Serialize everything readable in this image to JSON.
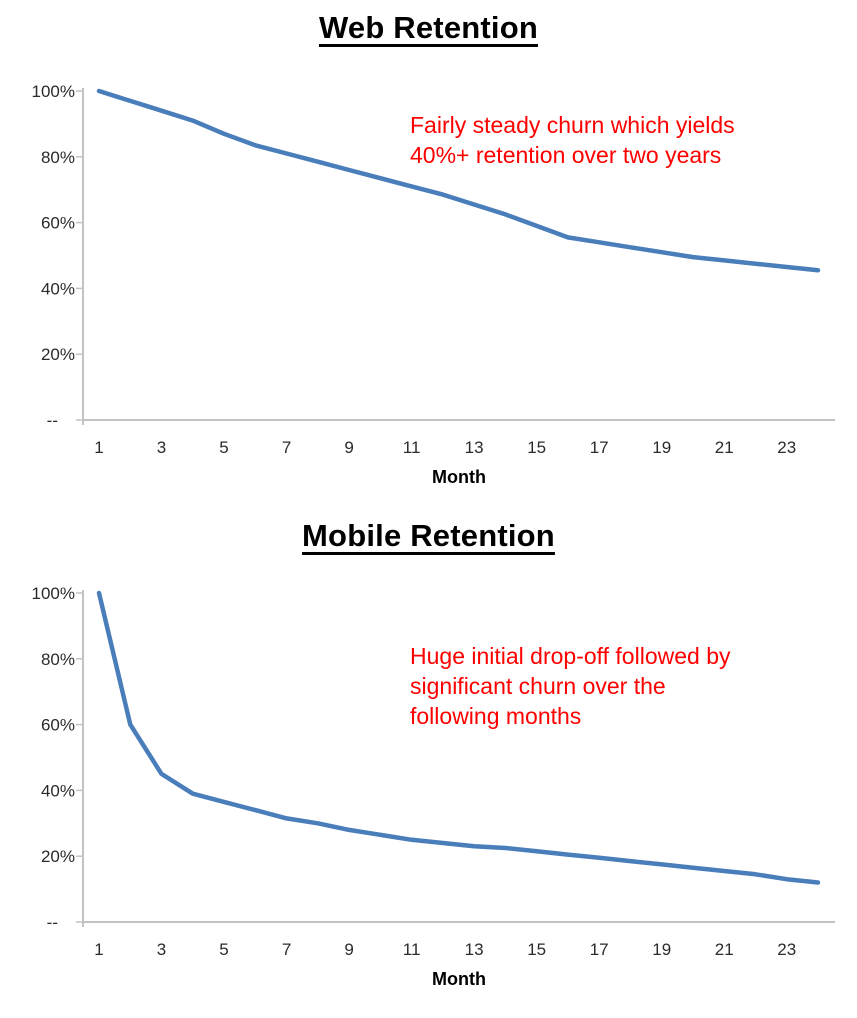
{
  "styles": {
    "background": "#FFFFFF",
    "title_color": "#000000",
    "line_color": "#4A7EBB",
    "axis_color": "#C3C3C3",
    "tick_label_color": "#2B2B2B",
    "axis_title_color": "#000000",
    "annotation_color": "#FF0000"
  },
  "chart_data": [
    {
      "type": "line",
      "title": "Web Retention",
      "xlabel": "Month",
      "ylabel": "",
      "x": [
        1,
        2,
        3,
        4,
        5,
        6,
        7,
        8,
        9,
        10,
        11,
        12,
        13,
        14,
        15,
        16,
        17,
        18,
        19,
        20,
        21,
        22,
        23,
        24
      ],
      "series": [
        {
          "name": "Web retention",
          "color": "#4A7EBB",
          "values": [
            100,
            97,
            94,
            91,
            87,
            83.5,
            81,
            78.5,
            76,
            73.5,
            71,
            68.5,
            65.5,
            62.5,
            59,
            55.5,
            54,
            52.5,
            51,
            49.5,
            48.5,
            47.5,
            46.5,
            45.5
          ]
        }
      ],
      "ylim": [
        0,
        100
      ],
      "yticks": [
        0,
        20,
        40,
        60,
        80,
        100
      ],
      "ytick_labels": [
        "--",
        "20%",
        "40%",
        "60%",
        "80%",
        "100%"
      ],
      "xticks": [
        1,
        3,
        5,
        7,
        9,
        11,
        13,
        15,
        17,
        19,
        21,
        23
      ],
      "grid": false,
      "legend": "none",
      "annotation": {
        "lines": [
          "Fairly steady churn which yields",
          "40%+ retention over two years"
        ],
        "color": "#FF0000"
      }
    },
    {
      "type": "line",
      "title": "Mobile Retention",
      "xlabel": "Month",
      "ylabel": "",
      "x": [
        1,
        2,
        3,
        4,
        5,
        6,
        7,
        8,
        9,
        10,
        11,
        12,
        13,
        14,
        15,
        16,
        17,
        18,
        19,
        20,
        21,
        22,
        23,
        24
      ],
      "series": [
        {
          "name": "Mobile retention",
          "color": "#4A7EBB",
          "values": [
            100,
            60,
            45,
            39,
            36.5,
            34,
            31.5,
            30,
            28,
            26.5,
            25,
            24,
            23,
            22.5,
            21.5,
            20.5,
            19.5,
            18.5,
            17.5,
            16.5,
            15.5,
            14.5,
            13,
            12
          ]
        }
      ],
      "ylim": [
        0,
        100
      ],
      "yticks": [
        0,
        20,
        40,
        60,
        80,
        100
      ],
      "ytick_labels": [
        "--",
        "20%",
        "40%",
        "60%",
        "80%",
        "100%"
      ],
      "xticks": [
        1,
        3,
        5,
        7,
        9,
        11,
        13,
        15,
        17,
        19,
        21,
        23
      ],
      "grid": false,
      "legend": "none",
      "annotation": {
        "lines": [
          "Huge initial drop-off followed by",
          "significant churn over the",
          "following months"
        ],
        "color": "#FF0000"
      }
    }
  ]
}
